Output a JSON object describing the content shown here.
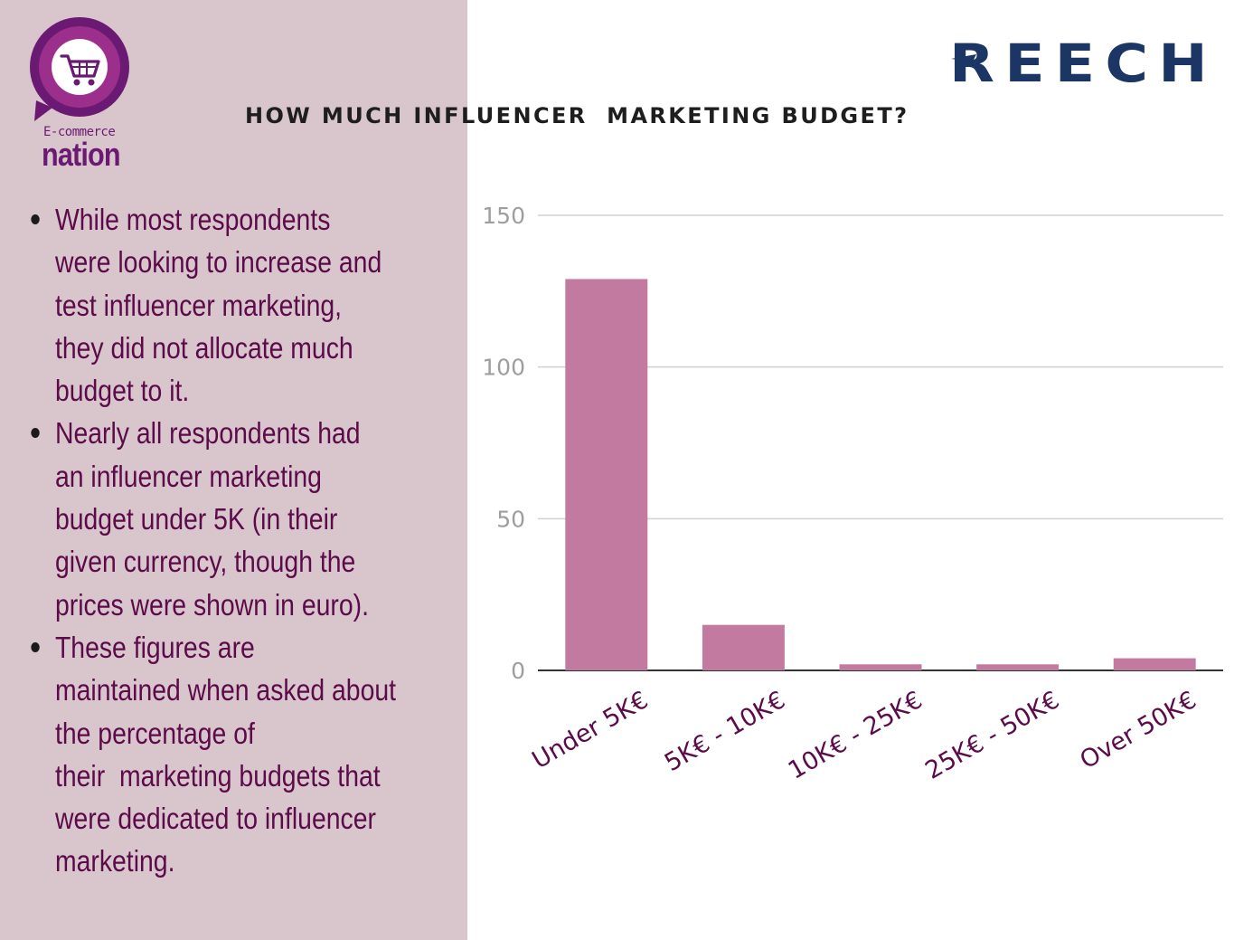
{
  "header": {
    "left_logo": {
      "small_text": "E-commerce",
      "big_text": "nation",
      "icon": "shopping-cart-icon",
      "color": "#6b1a73"
    },
    "title": "HOW MUCH INFLUENCER  MARKETING BUDGET?",
    "right_logo": {
      "text": "REECH",
      "color": "#1b3564"
    }
  },
  "bullets": [
    {
      "lines": [
        "While most respondents",
        "were looking to increase and",
        "test influencer marketing,",
        "they did not allocate much",
        "budget to it."
      ]
    },
    {
      "lines": [
        "Nearly all respondents had",
        "an influencer marketing",
        "budget under 5K (in their",
        "given currency, though the",
        "prices were shown in euro)."
      ]
    },
    {
      "lines": [
        "These figures are",
        "maintained when asked about",
        "the percentage of",
        "their  marketing budgets that",
        "were dedicated to influencer",
        "marketing."
      ]
    }
  ],
  "colors": {
    "left_panel_bg": "#d9c5cc",
    "bullet_text": "#5c0b4a",
    "bar": "#c27aa0",
    "tick_label": "#9e9e9e",
    "category_label": "#5c0b4a"
  },
  "chart_data": {
    "type": "bar",
    "categories": [
      "Under 5K€",
      "5K€ - 10K€",
      "10K€ - 25K€",
      "25K€ - 50K€",
      "Over 50K€"
    ],
    "values": [
      129,
      15,
      2,
      2,
      4
    ],
    "yticks": [
      0,
      50,
      100,
      150
    ],
    "ylim": [
      0,
      150
    ],
    "grid": true,
    "legend": "none"
  }
}
